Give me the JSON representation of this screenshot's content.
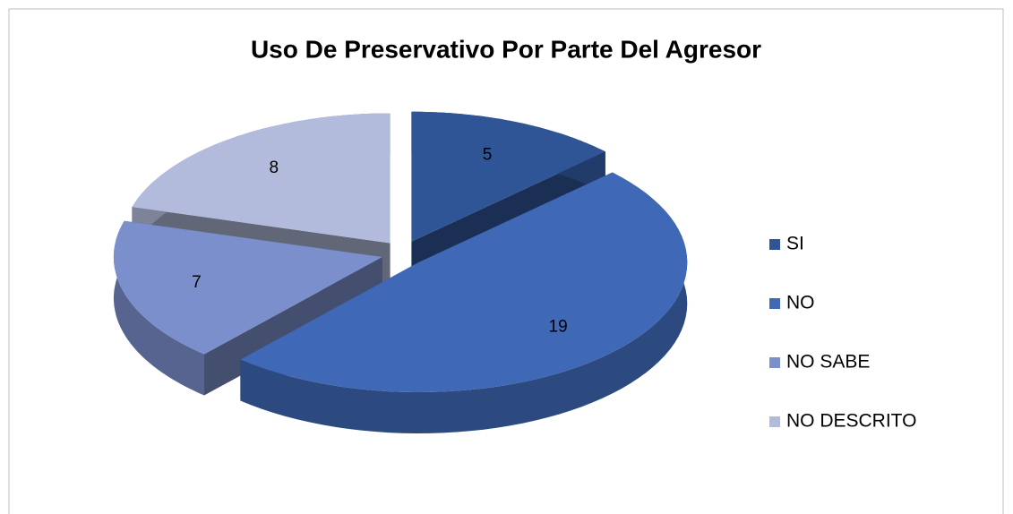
{
  "chart_data": {
    "type": "pie",
    "title": "Uso De Preservativo Por Parte Del Agresor",
    "categories": [
      "SI",
      "NO",
      "NO SABE",
      "NO DESCRITO"
    ],
    "values": [
      5,
      19,
      7,
      8
    ],
    "colors": [
      "#2f5597",
      "#3f69b6",
      "#7b8fcc",
      "#b2bbdb"
    ],
    "legend": "right"
  }
}
